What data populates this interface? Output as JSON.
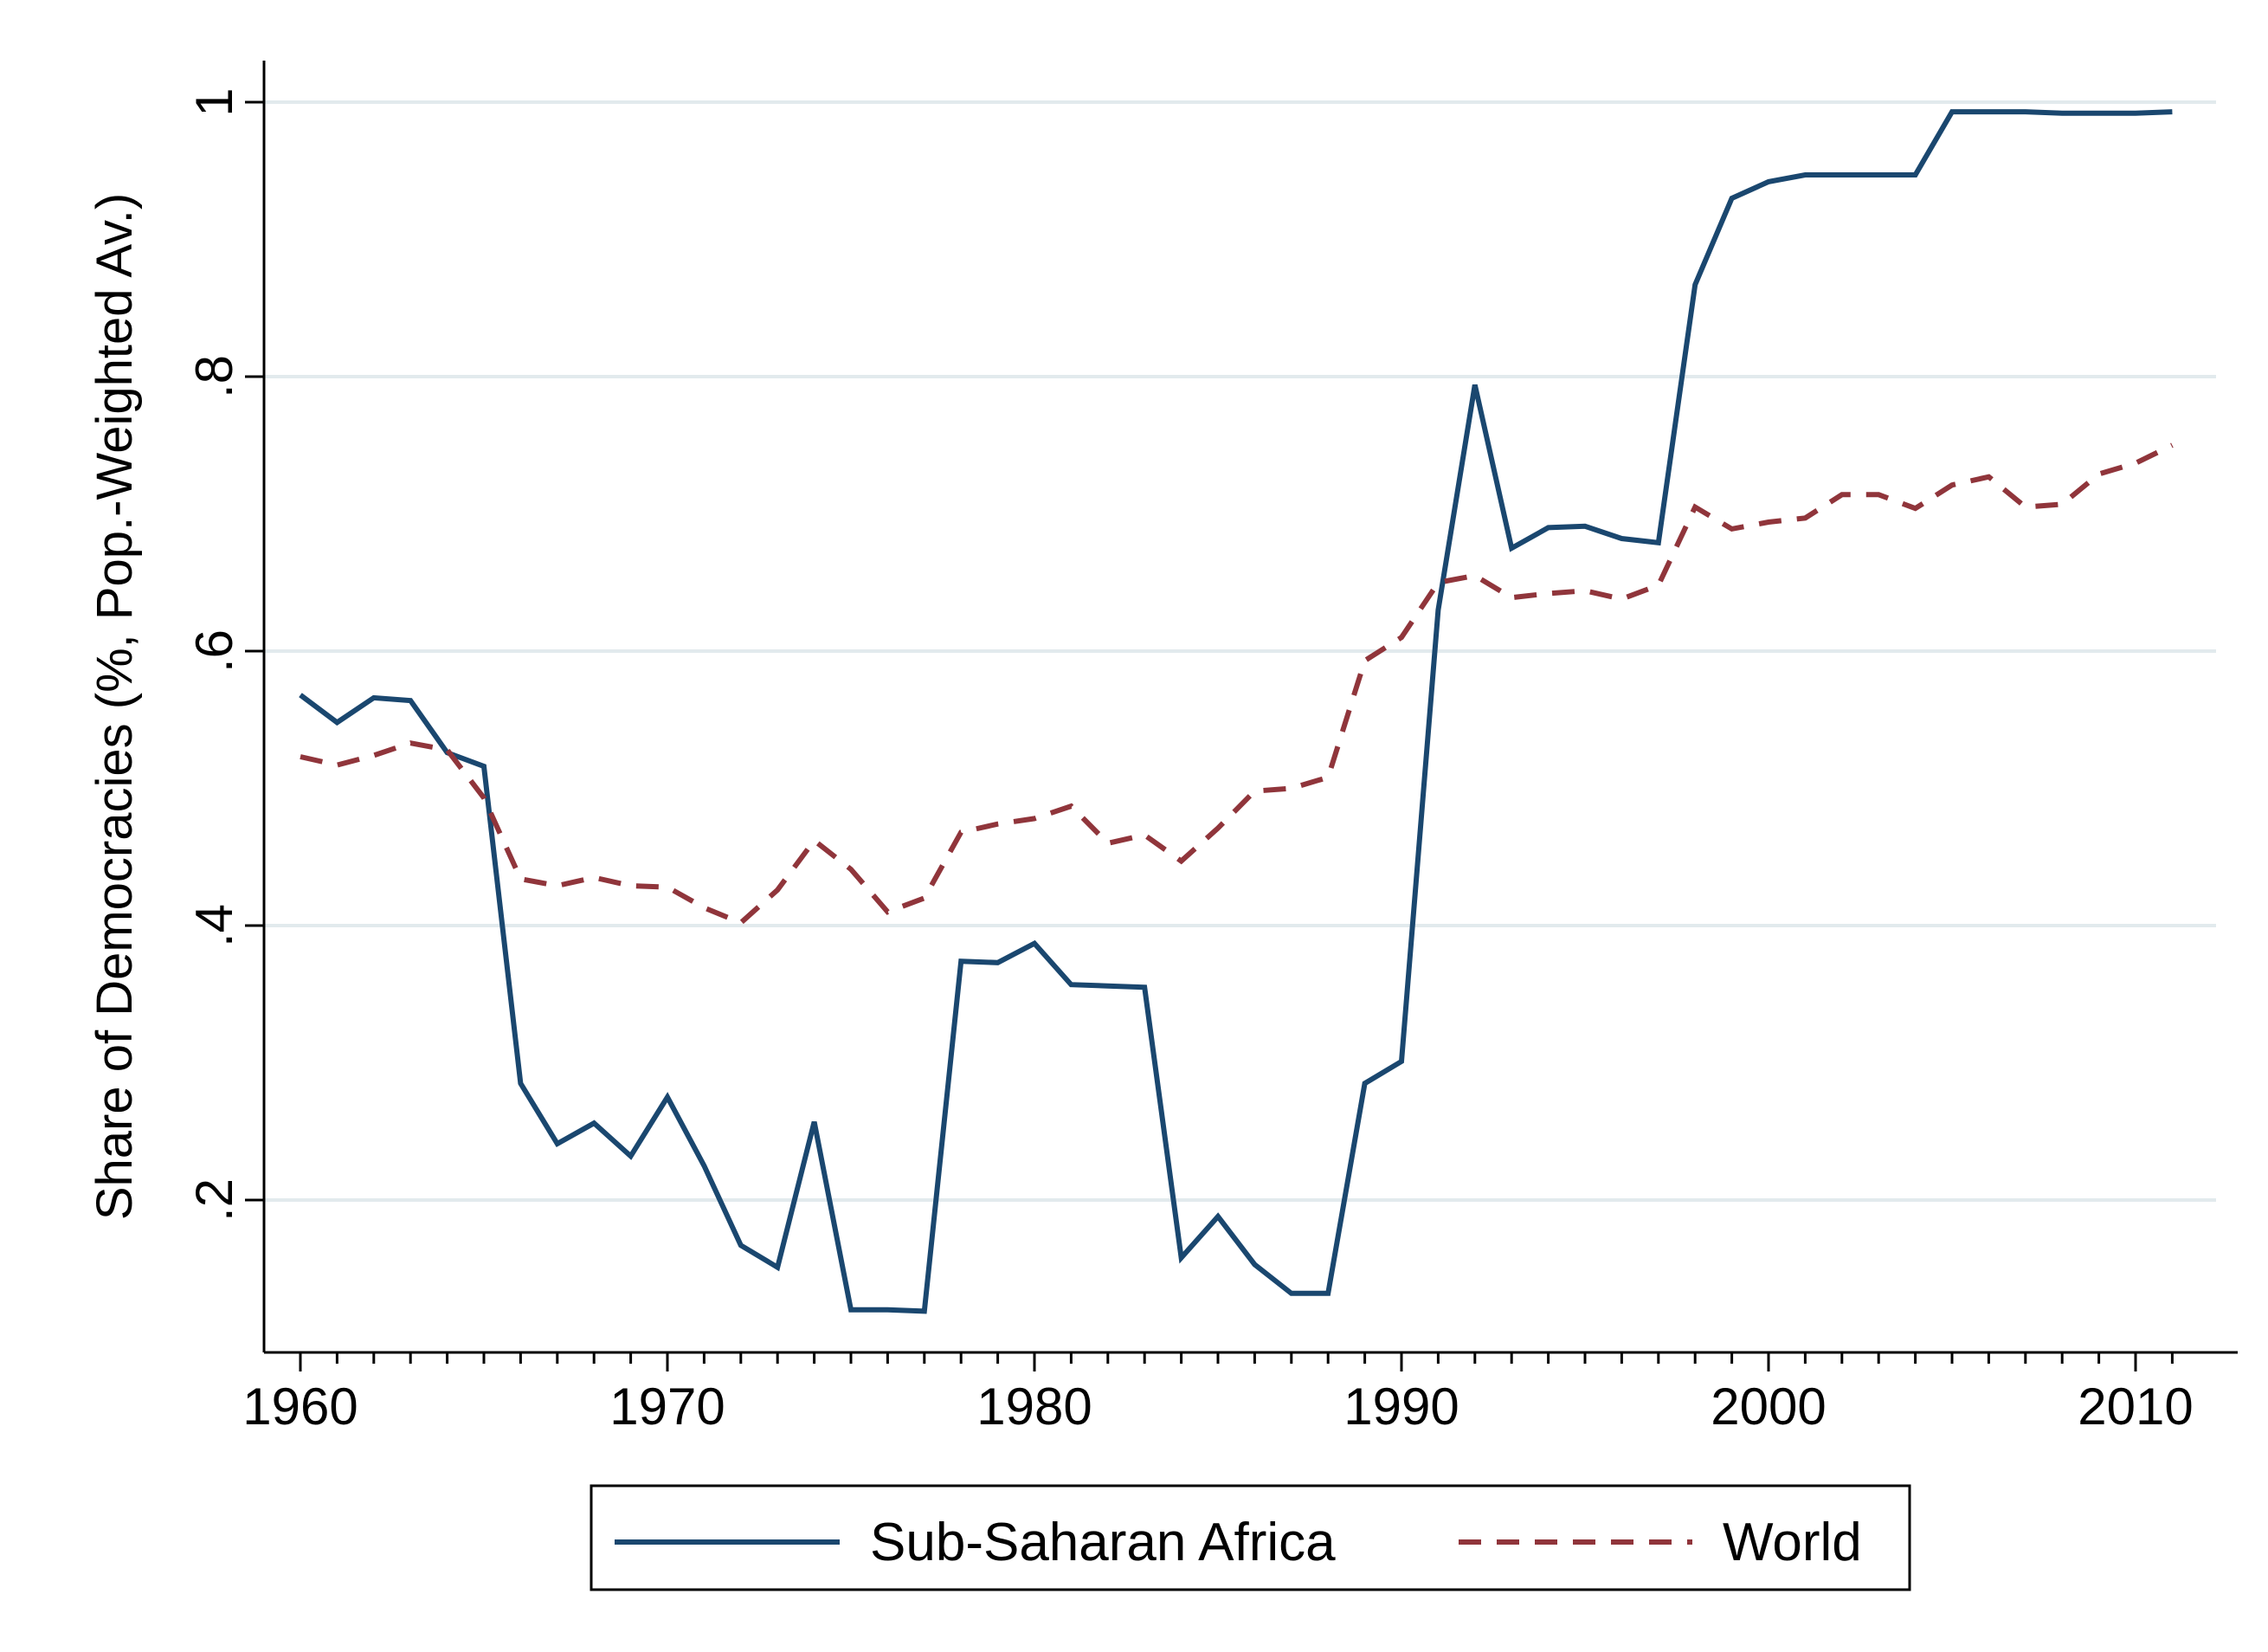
{
  "chart_data": {
    "type": "line",
    "title": "",
    "xlabel": "",
    "ylabel": "Share of Democracies (%, Pop.-Weighted Av.)",
    "xlim": [
      1959,
      2012
    ],
    "ylim": [
      0.1,
      1.05
    ],
    "x_ticks": [
      1960,
      1970,
      1980,
      1990,
      2000,
      2010
    ],
    "x_tick_labels": [
      "1960",
      "1970",
      "1980",
      "1990",
      "2000",
      "2010"
    ],
    "y_ticks": [
      0.2,
      0.4,
      0.6,
      0.8,
      1.0
    ],
    "y_tick_labels": [
      ".2",
      ".4",
      ".6",
      ".8",
      "1"
    ],
    "grid": "horizontal",
    "legend_position": "bottom",
    "x": [
      1960,
      1961,
      1962,
      1963,
      1964,
      1965,
      1966,
      1967,
      1968,
      1969,
      1970,
      1971,
      1972,
      1973,
      1974,
      1975,
      1976,
      1977,
      1978,
      1979,
      1980,
      1981,
      1982,
      1983,
      1984,
      1985,
      1986,
      1987,
      1988,
      1989,
      1990,
      1991,
      1992,
      1993,
      1994,
      1995,
      1996,
      1997,
      1998,
      1999,
      2000,
      2001,
      2002,
      2003,
      2004,
      2005,
      2006,
      2007,
      2008,
      2009,
      2010,
      2011
    ],
    "series": [
      {
        "name": "Sub-Saharan Africa",
        "color": "#1a476f",
        "style": "solid",
        "values": [
          0.568,
          0.548,
          0.566,
          0.564,
          0.526,
          0.516,
          0.285,
          0.241,
          0.256,
          0.232,
          0.275,
          0.225,
          0.167,
          0.151,
          0.257,
          0.12,
          0.12,
          0.119,
          0.374,
          0.373,
          0.387,
          0.357,
          0.356,
          0.355,
          0.158,
          0.188,
          0.153,
          0.132,
          0.132,
          0.285,
          0.301,
          0.63,
          0.794,
          0.675,
          0.69,
          0.691,
          0.682,
          0.679,
          0.867,
          0.93,
          0.942,
          0.947,
          0.947,
          0.947,
          0.947,
          0.993,
          0.993,
          0.993,
          0.992,
          0.992,
          0.992,
          0.993
        ]
      },
      {
        "name": "World",
        "color": "#90353b",
        "style": "dashed",
        "values": [
          0.523,
          0.517,
          0.524,
          0.533,
          0.528,
          0.493,
          0.434,
          0.429,
          0.435,
          0.429,
          0.428,
          0.413,
          0.402,
          0.426,
          0.462,
          0.441,
          0.41,
          0.42,
          0.468,
          0.474,
          0.478,
          0.487,
          0.46,
          0.466,
          0.447,
          0.471,
          0.498,
          0.5,
          0.508,
          0.593,
          0.61,
          0.65,
          0.655,
          0.639,
          0.642,
          0.644,
          0.638,
          0.648,
          0.705,
          0.689,
          0.694,
          0.697,
          0.714,
          0.714,
          0.704,
          0.721,
          0.727,
          0.705,
          0.707,
          0.729,
          0.737,
          0.75
        ]
      }
    ]
  }
}
